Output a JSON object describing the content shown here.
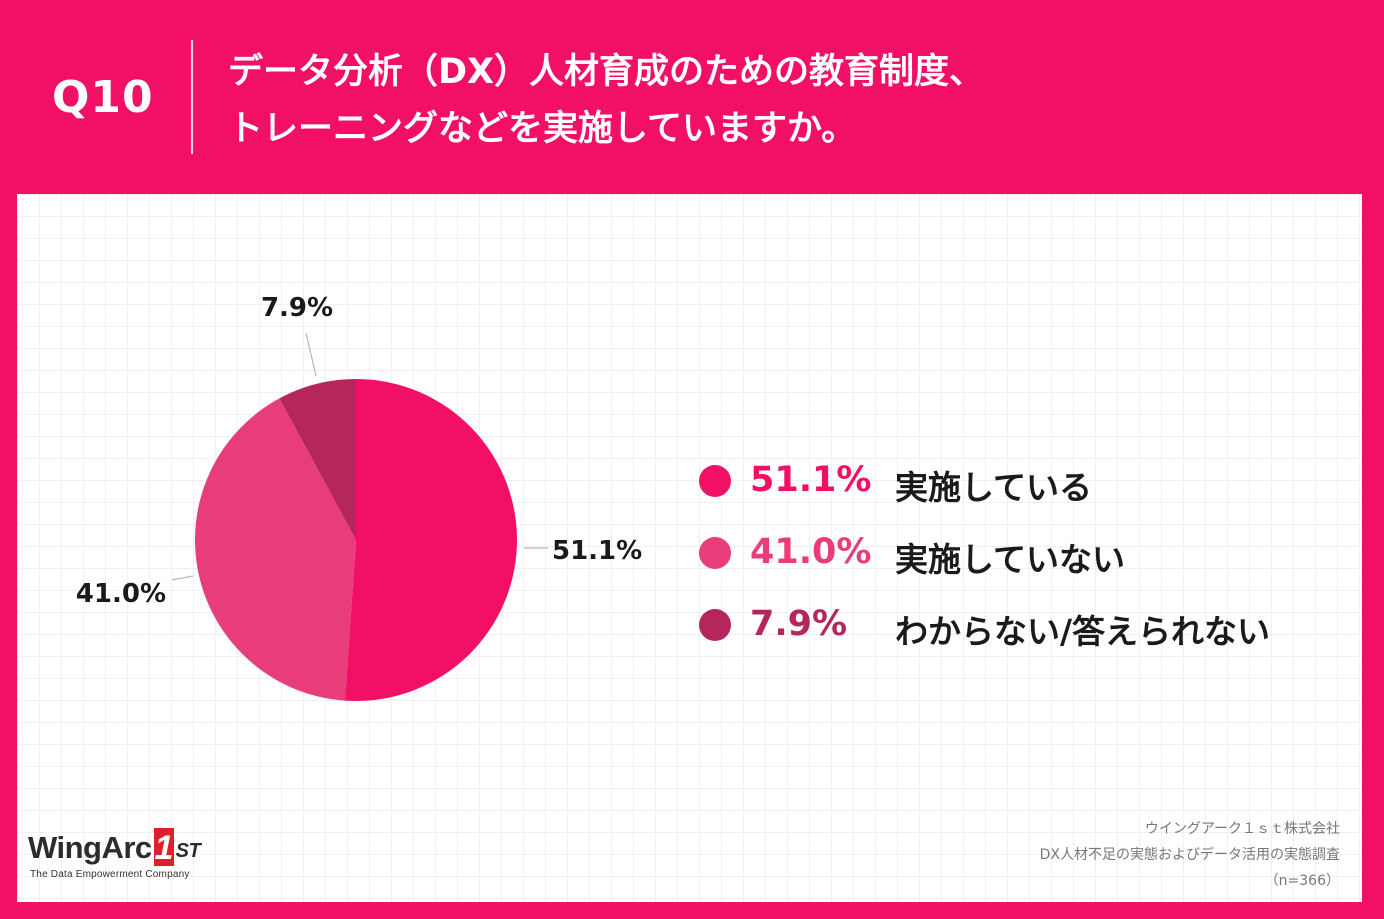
{
  "header": {
    "qnum": "Q10",
    "question_line1": "データ分析（DX）人材育成のための教育制度、",
    "question_line2": "トレーニングなどを実施していますか。"
  },
  "colors": {
    "background": "#f21067",
    "slice1": "#f21067",
    "slice2": "#e83d7a",
    "slice3": "#b5265c"
  },
  "chart_data": {
    "type": "pie",
    "slices": [
      {
        "label": "実施している",
        "value": 51.1,
        "pct_text": "51.1%"
      },
      {
        "label": "実施していない",
        "value": 41.0,
        "pct_text": "41.0%"
      },
      {
        "label": "わからない/答えられない",
        "value": 7.9,
        "pct_text": "7.9%"
      }
    ],
    "legend_placement": "right"
  },
  "footer": {
    "company": "ウイングアーク１ｓｔ株式会社",
    "survey": "DX人材不足の実態およびデータ活用の実態調査",
    "n": "（n=366）",
    "logo": {
      "brand": "WingArc",
      "one": "1",
      "st": "ST",
      "tagline": "The Data Empowerment Company"
    }
  }
}
